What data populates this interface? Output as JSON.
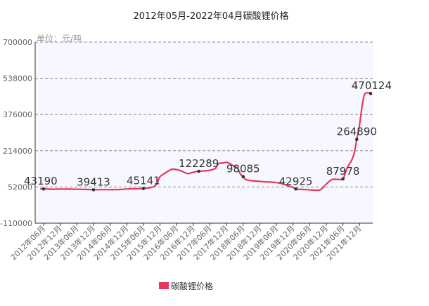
{
  "chart_data": {
    "type": "line",
    "title": "2012年05月-2022年04月碳酸锂价格",
    "unit_label": "单位：元/吨",
    "ylim": [
      -110000,
      700000
    ],
    "y_ticks": [
      700000,
      538000,
      376000,
      214000,
      52000,
      -110000
    ],
    "y_tick_labels": [
      "700000",
      "538000",
      "376000",
      "214000",
      "52000",
      "-110000"
    ],
    "x_tick_labels": [
      "2012年06月",
      "2012年12月",
      "2013年06月",
      "2013年12月",
      "2014年06月",
      "2014年12月",
      "2015年06月",
      "2015年12月",
      "2016年06月",
      "2016年12月",
      "2017年06月",
      "2017年12月",
      "2018年06月",
      "2018年12月",
      "2019年06月",
      "2019年12月",
      "2020年06月",
      "2020年12月",
      "2021年06月",
      "2021年12月"
    ],
    "grid_horizontal": true,
    "legend_position": "bottom-center",
    "series": [
      {
        "name": "碳酸锂价格",
        "color": "#e8375a",
        "points": [
          {
            "x": "2012-05",
            "y": 43500
          },
          {
            "x": "2012-06",
            "y": 43190
          },
          {
            "x": "2012-07",
            "y": 43100
          },
          {
            "x": "2012-08",
            "y": 42600
          },
          {
            "x": "2012-09",
            "y": 42000
          },
          {
            "x": "2012-10",
            "y": 42000
          },
          {
            "x": "2012-11",
            "y": 42500
          },
          {
            "x": "2012-12",
            "y": 43000
          },
          {
            "x": "2013-01",
            "y": 42800
          },
          {
            "x": "2013-03",
            "y": 42500
          },
          {
            "x": "2013-05",
            "y": 42000
          },
          {
            "x": "2013-07",
            "y": 41500
          },
          {
            "x": "2013-09",
            "y": 41000
          },
          {
            "x": "2013-11",
            "y": 40500
          },
          {
            "x": "2013-12",
            "y": 39413
          },
          {
            "x": "2014-02",
            "y": 40000
          },
          {
            "x": "2014-04",
            "y": 40000
          },
          {
            "x": "2014-06",
            "y": 40000
          },
          {
            "x": "2014-08",
            "y": 40000
          },
          {
            "x": "2014-10",
            "y": 41000
          },
          {
            "x": "2014-12",
            "y": 43000
          },
          {
            "x": "2015-02",
            "y": 44000
          },
          {
            "x": "2015-04",
            "y": 44500
          },
          {
            "x": "2015-06",
            "y": 45141
          },
          {
            "x": "2015-08",
            "y": 48000
          },
          {
            "x": "2015-10",
            "y": 55000
          },
          {
            "x": "2015-11",
            "y": 70000
          },
          {
            "x": "2015-12",
            "y": 98000
          },
          {
            "x": "2016-02",
            "y": 115000
          },
          {
            "x": "2016-04",
            "y": 130000
          },
          {
            "x": "2016-06",
            "y": 130000
          },
          {
            "x": "2016-08",
            "y": 122000
          },
          {
            "x": "2016-10",
            "y": 112000
          },
          {
            "x": "2016-12",
            "y": 118000
          },
          {
            "x": "2017-02",
            "y": 122289
          },
          {
            "x": "2017-04",
            "y": 124000
          },
          {
            "x": "2017-06",
            "y": 127000
          },
          {
            "x": "2017-08",
            "y": 135000
          },
          {
            "x": "2017-09",
            "y": 155000
          },
          {
            "x": "2017-11",
            "y": 160000
          },
          {
            "x": "2017-12",
            "y": 162000
          },
          {
            "x": "2018-01",
            "y": 158000
          },
          {
            "x": "2018-02",
            "y": 150000
          },
          {
            "x": "2018-04",
            "y": 135000
          },
          {
            "x": "2018-05",
            "y": 110000
          },
          {
            "x": "2018-06",
            "y": 98085
          },
          {
            "x": "2018-07",
            "y": 85000
          },
          {
            "x": "2018-09",
            "y": 80000
          },
          {
            "x": "2018-11",
            "y": 78000
          },
          {
            "x": "2019-02",
            "y": 75000
          },
          {
            "x": "2019-05",
            "y": 73000
          },
          {
            "x": "2019-08",
            "y": 67000
          },
          {
            "x": "2019-10",
            "y": 58000
          },
          {
            "x": "2019-12",
            "y": 50000
          },
          {
            "x": "2020-01",
            "y": 42925
          },
          {
            "x": "2020-03",
            "y": 41000
          },
          {
            "x": "2020-05",
            "y": 40000
          },
          {
            "x": "2020-07",
            "y": 38000
          },
          {
            "x": "2020-09",
            "y": 37000
          },
          {
            "x": "2020-10",
            "y": 40000
          },
          {
            "x": "2020-11",
            "y": 52000
          },
          {
            "x": "2020-12",
            "y": 65000
          },
          {
            "x": "2021-02",
            "y": 85000
          },
          {
            "x": "2021-04",
            "y": 86000
          },
          {
            "x": "2021-06",
            "y": 87978
          },
          {
            "x": "2021-07",
            "y": 120000
          },
          {
            "x": "2021-08",
            "y": 148000
          },
          {
            "x": "2021-09",
            "y": 168000
          },
          {
            "x": "2021-10",
            "y": 200000
          },
          {
            "x": "2021-11",
            "y": 264890
          },
          {
            "x": "2021-12",
            "y": 330000
          },
          {
            "x": "2022-01",
            "y": 420000
          },
          {
            "x": "2022-02",
            "y": 470000
          },
          {
            "x": "2022-04",
            "y": 470124
          }
        ]
      }
    ],
    "data_labels": [
      {
        "x": "2012-06",
        "y": 43190,
        "text": "43190"
      },
      {
        "x": "2013-12",
        "y": 39413,
        "text": "39413"
      },
      {
        "x": "2015-06",
        "y": 45141,
        "text": "45141"
      },
      {
        "x": "2017-02",
        "y": 122289,
        "text": "122289"
      },
      {
        "x": "2018-06",
        "y": 98085,
        "text": "98085"
      },
      {
        "x": "2020-01",
        "y": 42925,
        "text": "42925"
      },
      {
        "x": "2021-06",
        "y": 87978,
        "text": "87978"
      },
      {
        "x": "2021-11",
        "y": 264890,
        "text": "264890"
      },
      {
        "x": "2022-04",
        "y": 470124,
        "text": "470124"
      }
    ],
    "colors": {
      "line": "#e8375a",
      "plot_background": "#f7f8ff",
      "grid": "#8a8a8a",
      "axis": "#333333",
      "marker": "#333333"
    }
  }
}
